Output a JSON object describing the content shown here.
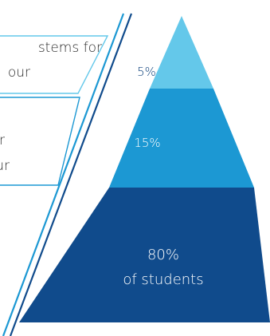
{
  "pyramid": {
    "tiers": [
      {
        "id": "top",
        "label": "5%",
        "color": "#64c8ea"
      },
      {
        "id": "middle",
        "label": "15%",
        "color": "#1c98d3"
      },
      {
        "id": "bottom",
        "label_line1": "80%",
        "label_line2": "of students",
        "color": "#104b8c"
      }
    ]
  },
  "callouts": {
    "top": {
      "line1": "stems for",
      "line2": "our",
      "line_color": "#64c8ea"
    },
    "middle": {
      "line1": "r",
      "line2": "ur",
      "line_color": "#1c98d3"
    }
  },
  "divider_colors": {
    "outer": "#104b8c",
    "inner": "#1c98d3"
  }
}
